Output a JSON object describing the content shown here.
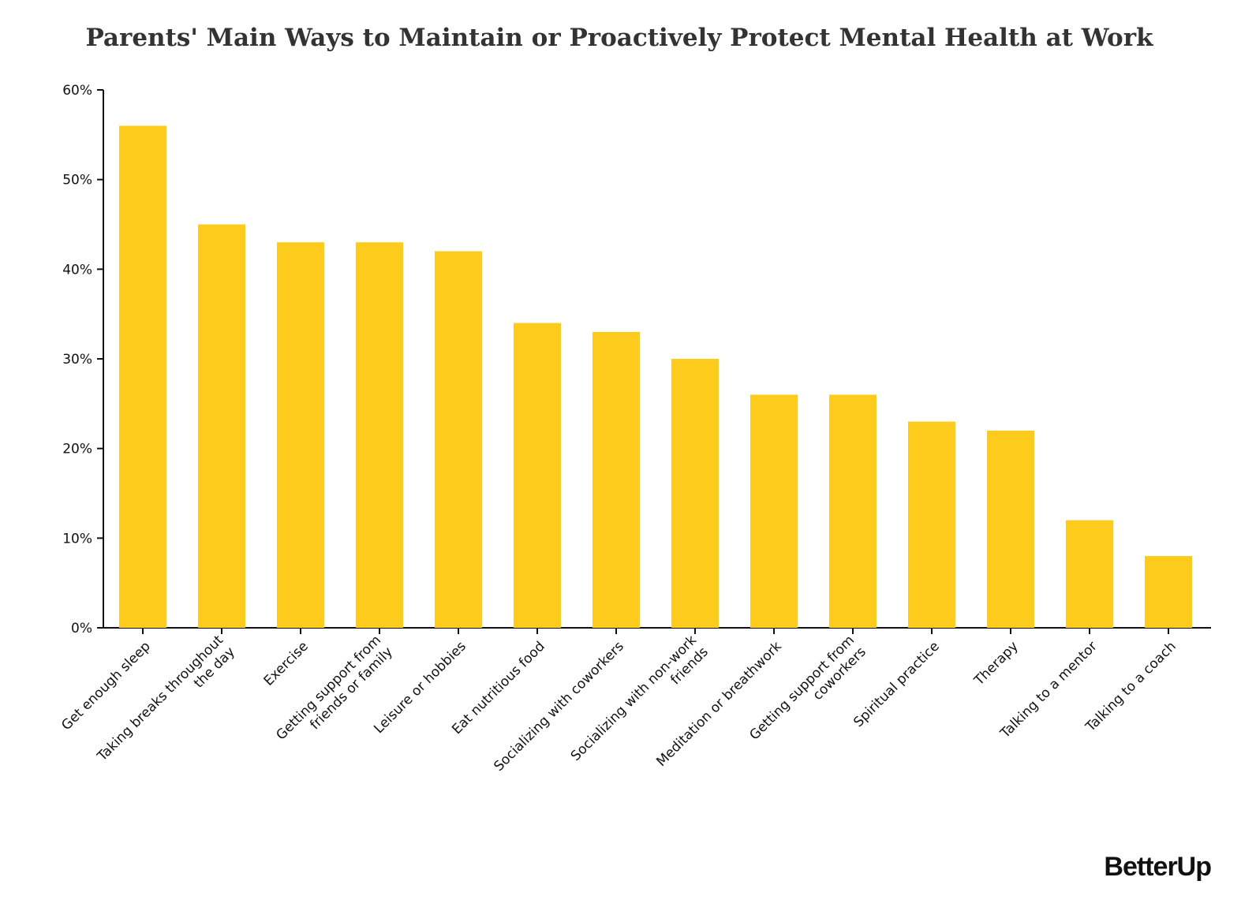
{
  "chart_data": {
    "type": "bar",
    "title": "Parents' Main Ways to Maintain or Proactively Protect Mental Health at Work",
    "categories": [
      "Get enough sleep",
      "Taking breaks throughout the day",
      "Exercise",
      "Getting support from friends or family",
      "Leisure or hobbies",
      "Eat nutritious food",
      "Socializing with coworkers",
      "Socializing with non-work friends",
      "Meditation or breathwork",
      "Getting support from coworkers",
      "Spiritual practice",
      "Therapy",
      "Talking to a mentor",
      "Talking to a coach"
    ],
    "values": [
      56,
      45,
      43,
      43,
      42,
      34,
      33,
      30,
      26,
      26,
      23,
      22,
      12,
      8
    ],
    "color": "#fdcb1c",
    "ylim": [
      0,
      60
    ],
    "yticks": [
      {
        "value": 0,
        "label": "0%"
      },
      {
        "value": 10,
        "label": "10%"
      },
      {
        "value": 20,
        "label": "20%"
      },
      {
        "value": 30,
        "label": "30%"
      },
      {
        "value": 40,
        "label": "40%"
      },
      {
        "value": 50,
        "label": "50%"
      },
      {
        "value": 60,
        "label": "60%"
      }
    ],
    "grid": false,
    "logo": "BetterUp"
  }
}
